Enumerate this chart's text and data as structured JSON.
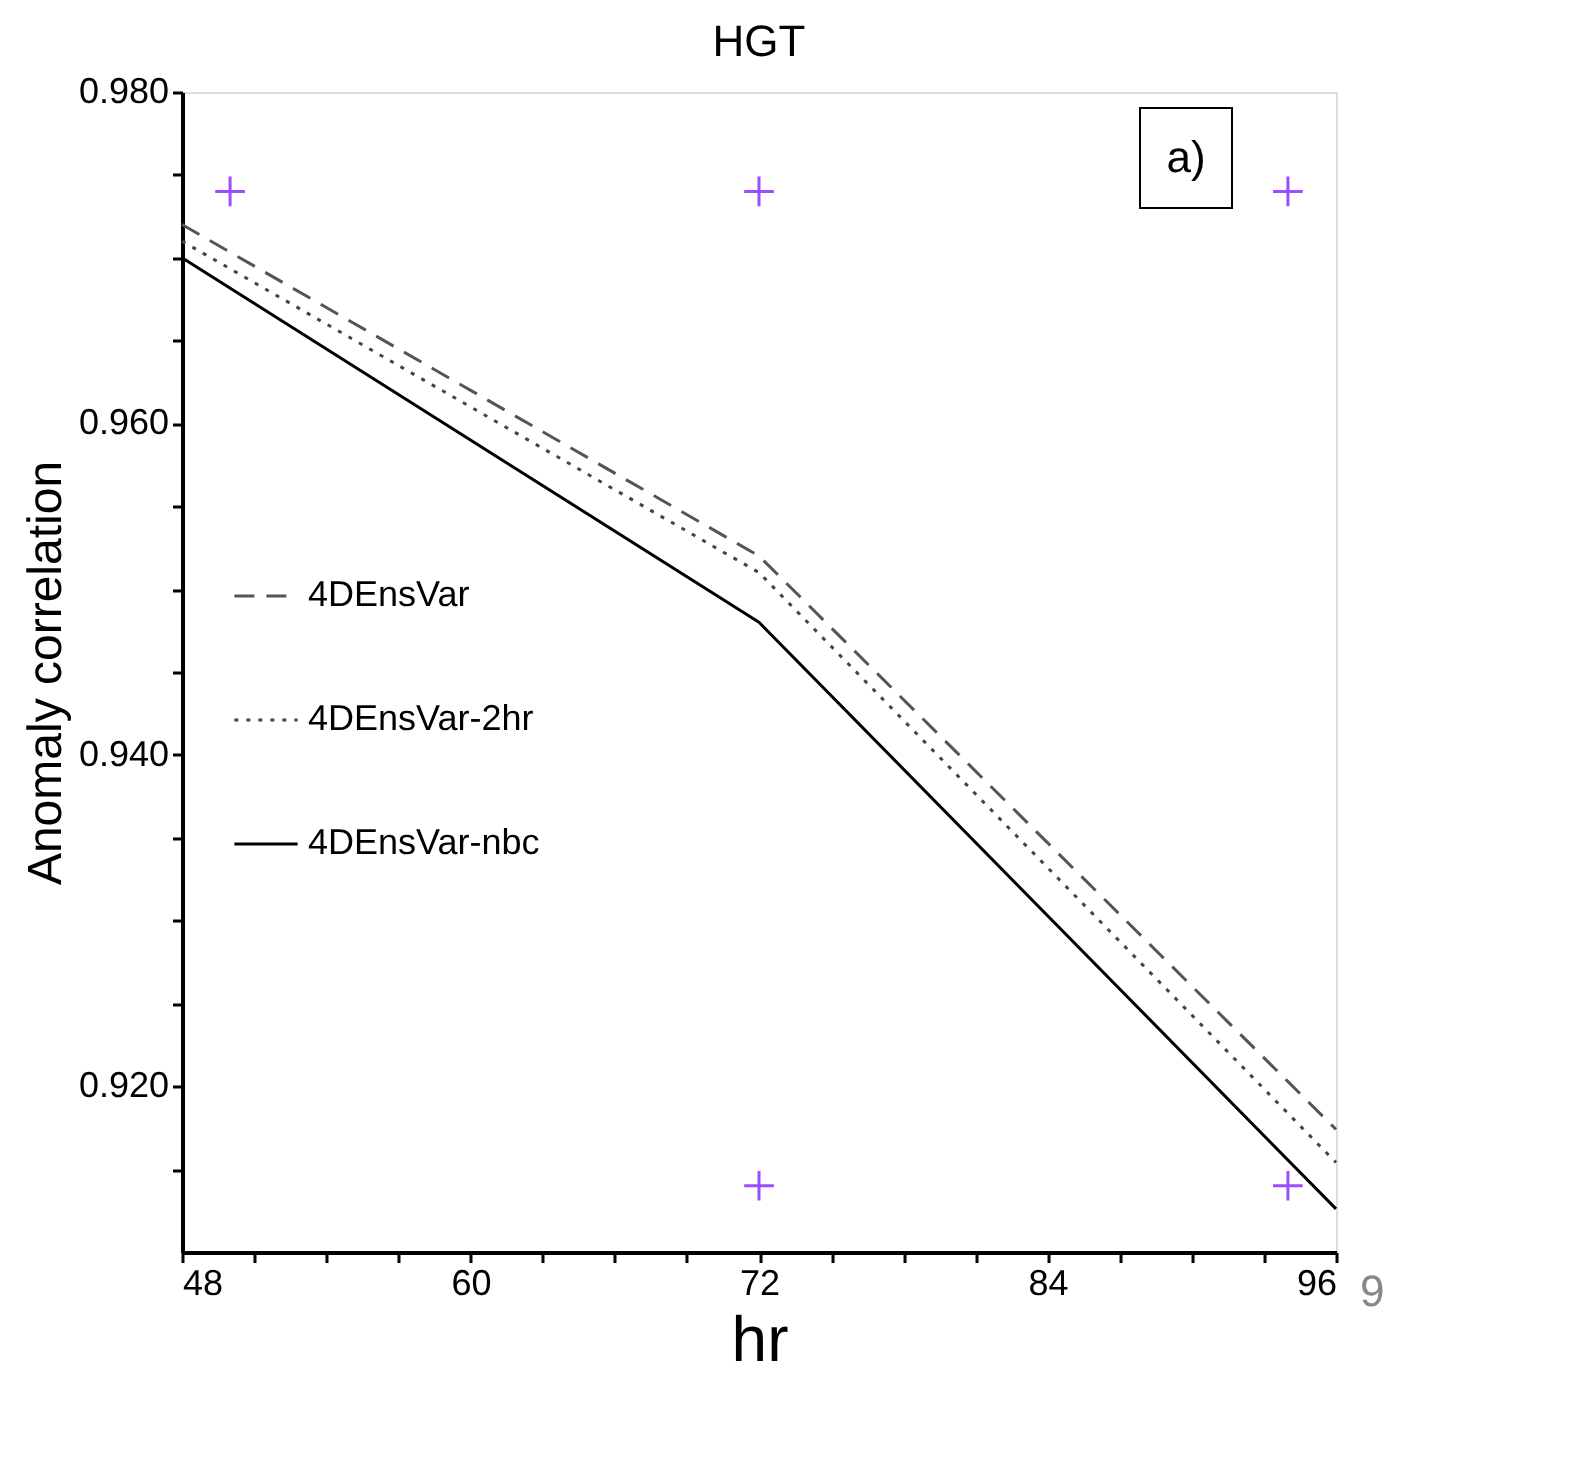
{
  "chart_data": {
    "type": "line",
    "title": "HGT",
    "xlabel": "hr",
    "ylabel": "Anomaly correlation",
    "x": [
      48,
      72,
      96
    ],
    "xlim": [
      48,
      96
    ],
    "xticks": [
      48,
      {
        "value": 51,
        "label": null
      },
      {
        "value": 54,
        "label": null
      },
      {
        "value": 57,
        "label": null
      },
      60,
      {
        "value": 63,
        "label": null
      },
      {
        "value": 66,
        "label": null
      },
      {
        "value": 69,
        "label": null
      },
      72,
      {
        "value": 75,
        "label": null
      },
      {
        "value": 78,
        "label": null
      },
      {
        "value": 81,
        "label": null
      },
      84,
      {
        "value": 87,
        "label": null
      },
      {
        "value": 90,
        "label": null
      },
      {
        "value": 93,
        "label": null
      },
      96
    ],
    "ylim": [
      0.91,
      0.98
    ],
    "yticks": [
      {
        "value": 0.915,
        "label": null
      },
      {
        "value": 0.92,
        "label": "0.920"
      },
      {
        "value": 0.925,
        "label": null
      },
      {
        "value": 0.93,
        "label": null
      },
      {
        "value": 0.935,
        "label": null
      },
      {
        "value": 0.94,
        "label": "0.940"
      },
      {
        "value": 0.945,
        "label": null
      },
      {
        "value": 0.95,
        "label": null
      },
      {
        "value": 0.955,
        "label": null
      },
      {
        "value": 0.96,
        "label": "0.960"
      },
      {
        "value": 0.965,
        "label": null
      },
      {
        "value": 0.97,
        "label": null
      },
      {
        "value": 0.975,
        "label": null
      },
      {
        "value": 0.98,
        "label": "0.980"
      }
    ],
    "series": [
      {
        "name": "4DEnsVar",
        "color": "#555555",
        "line_style": "dashed",
        "values": [
          0.972,
          0.952,
          0.9174
        ]
      },
      {
        "name": "4DEnsVar-2hr",
        "color": "#444444",
        "line_style": "dotted",
        "values": [
          0.971,
          0.951,
          0.9154
        ]
      },
      {
        "name": "4DEnsVar-nbc",
        "color": "#000000",
        "line_style": "solid",
        "values": [
          0.97,
          0.948,
          0.9126
        ]
      },
      {
        "type": "scatter",
        "marker": "cross",
        "color": "#9b4dff",
        "x": [
          50,
          72,
          94,
          72,
          94
        ],
        "values": [
          0.974,
          0.974,
          0.974,
          0.914,
          0.914
        ]
      }
    ],
    "legend": "left",
    "grid": false,
    "annotations": [
      "a)",
      "9"
    ]
  }
}
